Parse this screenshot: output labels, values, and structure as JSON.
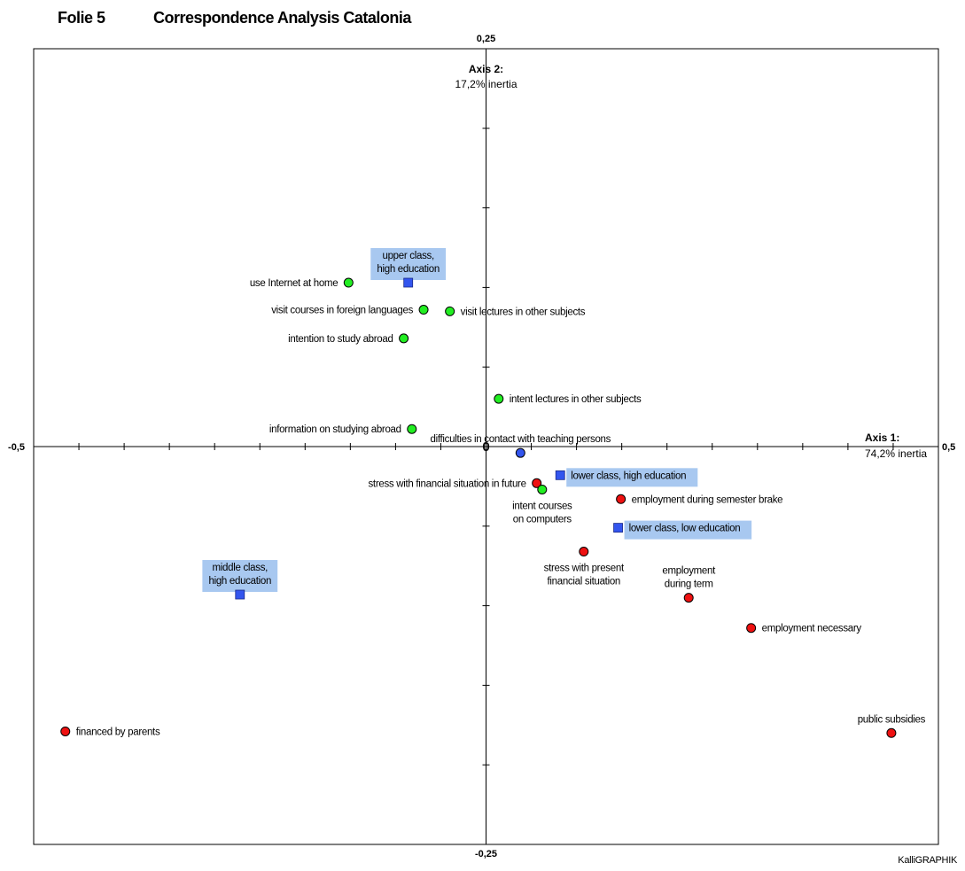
{
  "header": {
    "slide_label": "Folie 5",
    "title": "Correspondence Analysis Catalonia"
  },
  "footer": {
    "credit": "KalliGRAPHIK"
  },
  "chart_data": {
    "type": "scatter",
    "xlim": [
      -0.5,
      0.5
    ],
    "ylim": [
      -0.25,
      0.25
    ],
    "x_tick_labels": {
      "min": "-0,5",
      "max": "0,5",
      "origin": "0"
    },
    "y_tick_labels": {
      "min": "-0,25",
      "max": "0,25"
    },
    "axis1": {
      "name": "Axis 1:",
      "inertia": "74,2% inertia"
    },
    "axis2": {
      "name": "Axis 2:",
      "inertia": "17,2% inertia"
    },
    "colors": {
      "green": "#22ee22",
      "red": "#ee1111",
      "blue": "#3355ee",
      "highlight": "#a8c8f0"
    },
    "points": [
      {
        "label": [
          "use Internet at home"
        ],
        "x": -0.152,
        "y": 0.103,
        "marker": "green-circle",
        "anchor": "left"
      },
      {
        "label": [
          "upper class,",
          "high education"
        ],
        "x": -0.086,
        "y": 0.103,
        "marker": "blue-square",
        "anchor": "above",
        "highlight": true
      },
      {
        "label": [
          "visit courses in foreign languages"
        ],
        "x": -0.069,
        "y": 0.086,
        "marker": "green-circle",
        "anchor": "left"
      },
      {
        "label": [
          "visit lectures in other subjects"
        ],
        "x": -0.04,
        "y": 0.085,
        "marker": "green-circle",
        "anchor": "right"
      },
      {
        "label": [
          "intention to study abroad"
        ],
        "x": -0.091,
        "y": 0.068,
        "marker": "green-circle",
        "anchor": "left"
      },
      {
        "label": [
          "intent lectures in other subjects"
        ],
        "x": 0.014,
        "y": 0.03,
        "marker": "green-circle",
        "anchor": "right"
      },
      {
        "label": [
          "information on studying abroad"
        ],
        "x": -0.082,
        "y": 0.011,
        "marker": "green-circle",
        "anchor": "left"
      },
      {
        "label": [
          "difficulties in contact with teaching persons"
        ],
        "x": 0.038,
        "y": -0.004,
        "marker": "blue-circle",
        "anchor": "above"
      },
      {
        "label": [
          "lower class, high education"
        ],
        "x": 0.082,
        "y": -0.018,
        "marker": "blue-square",
        "anchor": "right",
        "highlight": true
      },
      {
        "label": [
          "stress with financial situation in future"
        ],
        "x": 0.056,
        "y": -0.023,
        "marker": "red-circle",
        "anchor": "left"
      },
      {
        "label": [
          "intent courses",
          "on computers"
        ],
        "x": 0.062,
        "y": -0.027,
        "marker": "green-circle",
        "anchor": "below"
      },
      {
        "label": [
          "employment during semester brake"
        ],
        "x": 0.149,
        "y": -0.033,
        "marker": "red-circle",
        "anchor": "right"
      },
      {
        "label": [
          "lower class, low education"
        ],
        "x": 0.146,
        "y": -0.051,
        "marker": "blue-square",
        "anchor": "right",
        "highlight": true
      },
      {
        "label": [
          "stress with present",
          "financial situation"
        ],
        "x": 0.108,
        "y": -0.066,
        "marker": "red-circle",
        "anchor": "below"
      },
      {
        "label": [
          "employment",
          "during term"
        ],
        "x": 0.224,
        "y": -0.095,
        "marker": "red-circle",
        "anchor": "above"
      },
      {
        "label": [
          "middle class,",
          "high education"
        ],
        "x": -0.272,
        "y": -0.093,
        "marker": "blue-square",
        "anchor": "above",
        "highlight": true
      },
      {
        "label": [
          "employment necessary"
        ],
        "x": 0.293,
        "y": -0.114,
        "marker": "red-circle",
        "anchor": "right"
      },
      {
        "label": [
          "financed by parents"
        ],
        "x": -0.465,
        "y": -0.179,
        "marker": "red-circle",
        "anchor": "right"
      },
      {
        "label": [
          "public subsidies"
        ],
        "x": 0.448,
        "y": -0.18,
        "marker": "red-circle",
        "anchor": "above"
      }
    ]
  }
}
